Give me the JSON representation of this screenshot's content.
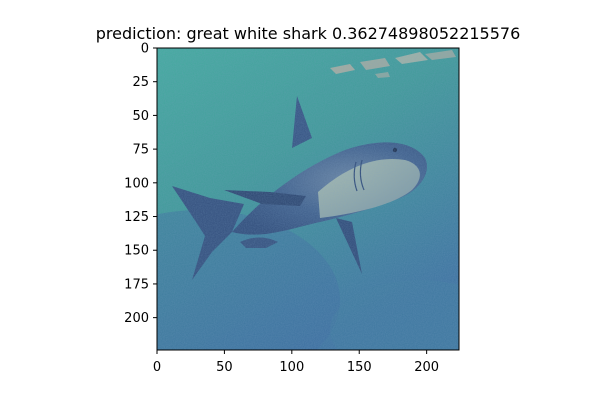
{
  "chart_data": {
    "type": "image",
    "title": "prediction: great white shark 0.36274898052215576",
    "image_size": [
      224,
      224
    ],
    "xlim": [
      0,
      224
    ],
    "ylim": [
      224,
      0
    ],
    "xticks": [
      0,
      50,
      100,
      150,
      200
    ],
    "yticks": [
      0,
      25,
      50,
      75,
      100,
      125,
      150,
      175,
      200
    ],
    "prediction": {
      "label": "great white shark",
      "score": 0.36274898052215576
    },
    "image_content": "shark-swimming-underwater",
    "colors": {
      "water_top": "#43ac9e",
      "water_mid": "#3f9a98",
      "water_bottom": "#3d73a0",
      "shark_body": "#3c5c88",
      "shark_dark": "#2f4a77",
      "shark_belly": "#9fb6a8",
      "surface_light": "#e9b7a4",
      "axis": "#000000"
    }
  }
}
